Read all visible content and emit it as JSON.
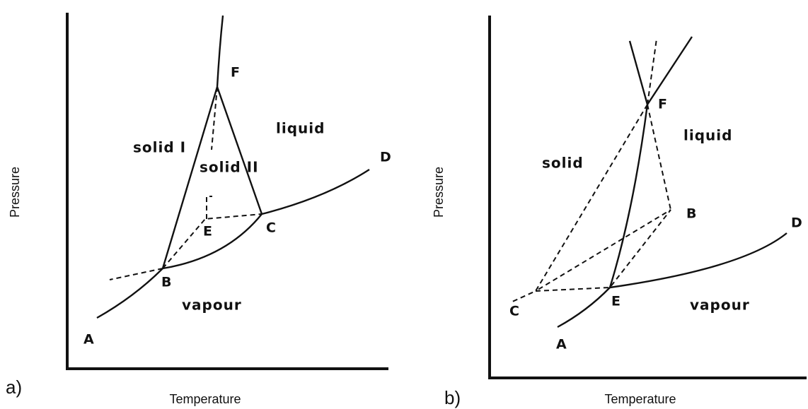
{
  "panels": [
    {
      "label": "a)",
      "x_axis_label": "Temperature",
      "y_axis_label": "Pressure",
      "points": [
        "F",
        "D",
        "E",
        "C",
        "B",
        "A"
      ],
      "regions": [
        "liquid",
        "solid I",
        "solid II",
        "vapour"
      ]
    },
    {
      "label": "b)",
      "x_axis_label": "Temperature",
      "y_axis_label": "Pressure",
      "points": [
        "F",
        "B",
        "D",
        "C",
        "E",
        "A"
      ],
      "regions": [
        "liquid",
        "solid",
        "vapour"
      ]
    }
  ]
}
